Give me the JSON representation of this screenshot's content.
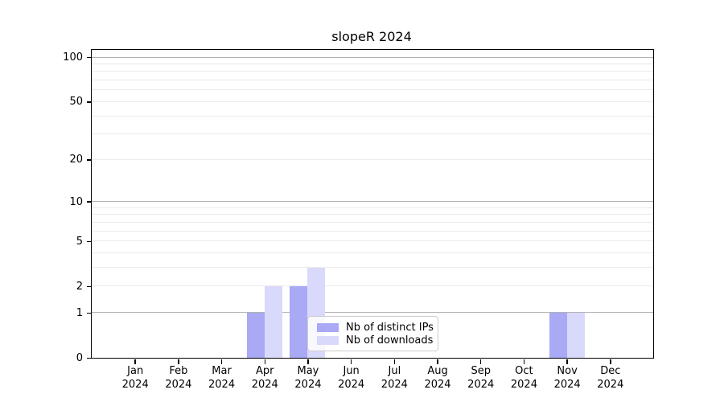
{
  "colors": {
    "distinct_ips": "#a9a9f5",
    "downloads": "#d9d9fb",
    "grid_decade": "#b3b3b3",
    "grid_minor": "#ebebeb",
    "axis": "#000000",
    "legend_border": "#cccccc"
  },
  "chart_data": {
    "type": "bar",
    "title": "slopeR 2024",
    "y_scale": "log1p",
    "y_max": 112,
    "ylim": [
      0,
      112
    ],
    "grid": true,
    "months": [
      "Jan",
      "Feb",
      "Mar",
      "Apr",
      "May",
      "Jun",
      "Jul",
      "Aug",
      "Sep",
      "Oct",
      "Nov",
      "Dec"
    ],
    "year_label": "2024",
    "categories": [
      "Jan 2024",
      "Feb 2024",
      "Mar 2024",
      "Apr 2024",
      "May 2024",
      "Jun 2024",
      "Jul 2024",
      "Aug 2024",
      "Sep 2024",
      "Oct 2024",
      "Nov 2024",
      "Dec 2024"
    ],
    "y_ticks": [
      0,
      1,
      2,
      5,
      10,
      20,
      50,
      100
    ],
    "y_minor_gridlines": [
      3,
      4,
      6,
      7,
      8,
      9,
      30,
      40,
      60,
      70,
      80,
      90
    ],
    "y_decade_gridlines": [
      1,
      10,
      100
    ],
    "series": [
      {
        "name": "Nb of distinct IPs",
        "color": "#a9a9f5",
        "values": [
          0,
          0,
          0,
          1,
          2,
          0,
          0,
          0,
          0,
          0,
          1,
          0
        ]
      },
      {
        "name": "Nb of downloads",
        "color": "#d9d9fb",
        "values": [
          0,
          0,
          0,
          2,
          3,
          0,
          0,
          0,
          0,
          0,
          1,
          0
        ]
      }
    ],
    "legend": {
      "position": "lower center",
      "entries": [
        "Nb of distinct IPs",
        "Nb of downloads"
      ]
    }
  }
}
